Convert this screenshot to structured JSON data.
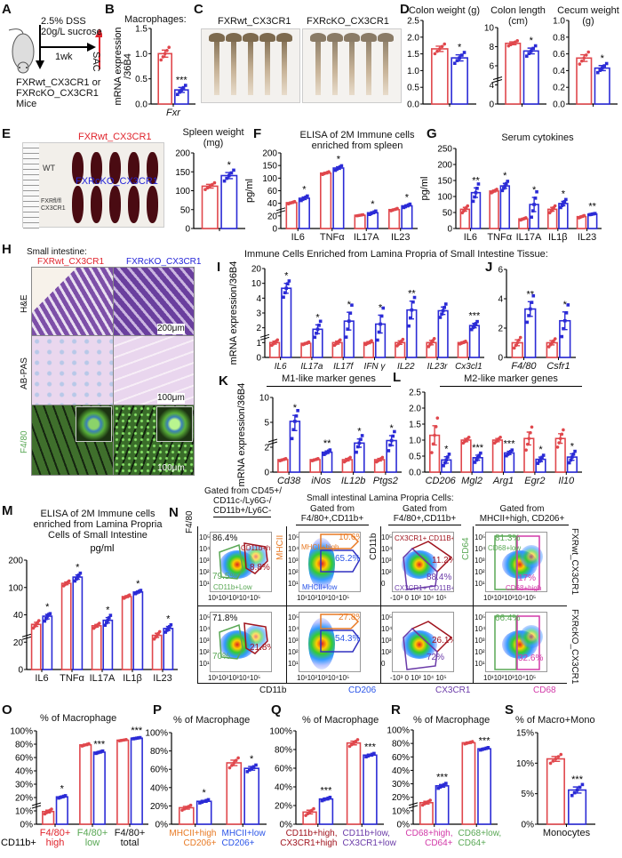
{
  "colors": {
    "wt": "#e0474c",
    "ko": "#2b2bd6",
    "orange": "#e87a24",
    "green": "#5aa855",
    "purple": "#6a3aa8",
    "magenta": "#d23aa8",
    "darkred": "#a0141e"
  },
  "panel_labels": [
    "A",
    "B",
    "C",
    "D",
    "E",
    "F",
    "G",
    "H",
    "I",
    "J",
    "K",
    "L",
    "M",
    "N",
    "O",
    "P",
    "Q",
    "R",
    "S"
  ],
  "A": {
    "treatment_line1": "2.5% DSS",
    "treatment_line2": "20g/L sucrose",
    "duration": "1wk",
    "endpoint": "SAC",
    "mice_line1": "FXRwt_CX3CR1 or",
    "mice_line2": "FXRcKO_CX3CR1",
    "mice_line3": "Mice",
    "icon": "mouse-icon"
  },
  "B": {
    "title": "Macrophages:"
  },
  "C": {
    "wt_label": "FXRwt_CX3CR1",
    "ko_label": "FXRcKO_CX3CR1"
  },
  "E": {
    "wt_label": "FXRwt_CX3CR1",
    "ko_label": "FXRcKO_CX3CR1",
    "handwriting_wt": "WT",
    "handwriting_ko": "FXRfl/fl CX3CR1"
  },
  "H": {
    "title": "Small intestine:",
    "wt_label": "FXRwt_CX3CR1",
    "ko_label": "FXRcKO_CX3CR1",
    "rows": [
      "H&E",
      "AB-PAS",
      "F4/80"
    ],
    "scale_bars": [
      "200μm",
      "100μm",
      "100μm"
    ]
  },
  "IJ_title": "Immune Cells Enriched from Lamina Propria of Small Intestine Tissue:",
  "K_title": "M1-like marker genes",
  "L_title": "M2-like marker genes",
  "M_title_line1": "ELISA of 2M Immune cells",
  "M_title_line2": "enriched from Lamina Propria",
  "M_title_line3": "Cells of Small Intestine",
  "N": {
    "header_left": [
      "Gated from CD45+/",
      "CD11c-/Ly6G-/",
      "CD11b+/Ly6C-"
    ],
    "header_main": "Small intestinal Lamina Propria Cells:",
    "header_col2": [
      "Gated from",
      "F4/80+,CD11b+"
    ],
    "header_col3": [
      "Gated from",
      "F4/80+,CD11b+"
    ],
    "header_col4": [
      "Gated from",
      "MHCII+high, CD206+"
    ],
    "y_axes": [
      "F4/80",
      "MHCII",
      "CD11b",
      "CD64"
    ],
    "x_axes": [
      "CD11b",
      "CD206",
      "CX3CR1",
      "CD68"
    ],
    "row_labels": [
      "FXRwt_CX3CR1",
      "FXRcKO_CX3CR1"
    ],
    "ticks_log": "10¹10²10³10⁴10⁵",
    "ticks_cx3cr1": "-10³ 0 10³ 10⁴ 10⁵",
    "yticks": [
      "10⁵",
      "10⁴",
      "10³",
      "10²",
      "10¹"
    ],
    "yticks_cx3cr1": [
      "10⁵",
      "10⁴",
      "10³",
      "10²",
      "0"
    ],
    "gates": {
      "cd11b_high": "CD11b+high",
      "cd11b_low": "CD11b+Low",
      "mhcii_high": "MHCII+high",
      "mhcii_low": "MHCII+low",
      "cx3cr1_high": "CX3CR1+ CD11B+ high",
      "cx3cr1_low": "CX3CR1+ CD11B+ low",
      "cd68_low": "CD68+low",
      "cd68_high": "CD68+high"
    },
    "wt": {
      "total": "86.4%",
      "cd11b_low": "79.5%",
      "cd11b_high": "8.8%",
      "mhcii_high": "10.6%",
      "mhcii_low": "65.2%",
      "cx3cr1_high": "11.2%",
      "cx3cr1_low": "88.4%",
      "cd68_low": "81.3%",
      "cd68_high": "17%"
    },
    "ko": {
      "total": "71.8%",
      "cd11b_low": "70%",
      "cd11b_high": "21.8%",
      "mhcii_high": "27.8%",
      "mhcii_low": "54.3%",
      "cx3cr1_high": "26.1%",
      "cx3cr1_low": "72%",
      "cd68_low": "66.4%",
      "cd68_high": "32.6%"
    }
  },
  "chart_data": [
    {
      "id": "B",
      "type": "bar",
      "ylabel": "mRNA expression /36B4",
      "yticks": [
        0,
        0.5,
        1.0,
        1.5
      ],
      "ytick_labels": [
        "0.0",
        "0.5",
        "1.0",
        "1.5"
      ],
      "categories": [
        "Fxr"
      ],
      "italic": true,
      "wt": [
        1.0
      ],
      "wt_err": [
        0.07
      ],
      "ko": [
        0.28
      ],
      "ko_err": [
        0.05
      ],
      "stars": [
        "***"
      ]
    },
    {
      "id": "D1",
      "type": "bar",
      "title": "Colon weight (g)",
      "yticks": [
        0,
        0.5,
        1.0,
        1.5,
        2.0,
        2.5
      ],
      "ytick_labels": [
        "0.0",
        "0.5",
        "1.0",
        "1.5",
        "2.0",
        "2.5"
      ],
      "categories": [
        ""
      ],
      "wt": [
        1.65
      ],
      "wt_err": [
        0.08
      ],
      "ko": [
        1.38
      ],
      "ko_err": [
        0.09
      ],
      "stars": [
        "*"
      ]
    },
    {
      "id": "D2",
      "type": "bar",
      "title": "Colon length (cm)",
      "yticks": [
        0,
        4,
        6,
        8,
        10
      ],
      "ytick_labels": [
        "0",
        "4",
        "6",
        "8",
        "10"
      ],
      "axis_break": true,
      "categories": [
        ""
      ],
      "wt": [
        8.35
      ],
      "wt_err": [
        0.15
      ],
      "ko": [
        7.55
      ],
      "ko_err": [
        0.3
      ],
      "stars": [
        "*"
      ]
    },
    {
      "id": "D3",
      "type": "bar",
      "title": "Cecum weight (g)",
      "yticks": [
        0,
        0.2,
        0.4,
        0.6,
        0.8,
        1.0
      ],
      "ytick_labels": [
        "0.0",
        "0.2",
        "0.4",
        "0.6",
        "0.8",
        "1.0"
      ],
      "categories": [
        ""
      ],
      "wt": [
        0.55
      ],
      "wt_err": [
        0.04
      ],
      "ko": [
        0.43
      ],
      "ko_err": [
        0.03
      ],
      "stars": [
        "*"
      ]
    },
    {
      "id": "E",
      "type": "bar",
      "title": "Spleen weight (mg)",
      "yticks": [
        0,
        50,
        100,
        150,
        200
      ],
      "ytick_labels": [
        "0",
        "50",
        "100",
        "150",
        "200"
      ],
      "categories": [
        ""
      ],
      "wt": [
        112
      ],
      "wt_err": [
        5
      ],
      "ko": [
        140
      ],
      "ko_err": [
        8
      ],
      "stars": [
        "*"
      ]
    },
    {
      "id": "F",
      "type": "bar",
      "title": "ELISA of 2M Immune cells enriched from spleen",
      "ylabel": "pg/ml",
      "yticks": [
        0,
        20,
        40,
        60,
        100,
        150,
        200
      ],
      "ytick_labels": [
        "0",
        "20",
        "40",
        "60",
        "100",
        "150",
        "200"
      ],
      "axis_break": true,
      "categories": [
        "IL6",
        "TNFα",
        "IL17A",
        "IL23"
      ],
      "wt": [
        41,
        120,
        21,
        30
      ],
      "wt_err": [
        1,
        3,
        0.5,
        1
      ],
      "ko": [
        48,
        140,
        25,
        36
      ],
      "ko_err": [
        2,
        5,
        1.5,
        1.5
      ],
      "stars": [
        "*",
        "*",
        "*",
        "*"
      ]
    },
    {
      "id": "G",
      "type": "bar",
      "title": "Serum cytokines",
      "ylabel": "pg/ml",
      "yticks": [
        0,
        50,
        100,
        150,
        200,
        250
      ],
      "ytick_labels": [
        "0",
        "50",
        "100",
        "150",
        "200",
        "250"
      ],
      "categories": [
        "IL6",
        "TNFα",
        "IL17A",
        "IL1β",
        "IL23"
      ],
      "wt": [
        60,
        117,
        30,
        60,
        37
      ],
      "wt_err": [
        6,
        3,
        2,
        6,
        2
      ],
      "ko": [
        112,
        133,
        75,
        78,
        45
      ],
      "ko_err": [
        15,
        8,
        22,
        7,
        1
      ],
      "stars": [
        "**",
        "*",
        "*",
        "*",
        "**"
      ]
    },
    {
      "id": "I",
      "type": "bar",
      "ylabel": "mRNA expression/36B4",
      "yticks": [
        0,
        1,
        2,
        3,
        4,
        10,
        20
      ],
      "ytick_labels": [
        "0",
        "1",
        "2",
        "3",
        "4",
        "10",
        "20"
      ],
      "axis_break": true,
      "italic": true,
      "categories": [
        "IL6",
        "IL17a",
        "IL17f",
        "IFN γ",
        "IL22",
        "IL23r",
        "Cx3cl1"
      ],
      "wt": [
        1.0,
        0.95,
        1.0,
        1.0,
        1.0,
        1.0,
        1.0
      ],
      "wt_err": [
        0.1,
        0.05,
        0.1,
        0.07,
        0.12,
        0.15,
        0.05
      ],
      "ko": [
        8,
        1.9,
        2.45,
        2.25,
        3.2,
        3.15,
        2.15
      ],
      "ko_err": [
        2,
        0.3,
        0.6,
        0.6,
        0.6,
        0.25,
        0.15
      ],
      "stars": [
        "*",
        "*",
        "*",
        "*",
        "**",
        "",
        "***"
      ]
    },
    {
      "id": "J",
      "type": "bar",
      "yticks": [
        0,
        2,
        4,
        6
      ],
      "ytick_labels": [
        "0",
        "2",
        "4",
        "6"
      ],
      "italic": true,
      "categories": [
        "F4/80",
        "Csfr1"
      ],
      "wt": [
        1.0,
        1.0
      ],
      "wt_err": [
        0.2,
        0.15
      ],
      "ko": [
        3.3,
        2.5
      ],
      "ko_err": [
        0.5,
        0.6
      ],
      "stars": [
        "**",
        "*"
      ]
    },
    {
      "id": "K",
      "type": "bar",
      "ylabel": "mRNA expression/36B4",
      "yticks": [
        0,
        2,
        5,
        10
      ],
      "ytick_labels": [
        "0",
        "2",
        "5",
        "10"
      ],
      "axis_break": true,
      "italic": true,
      "categories": [
        "Cd38",
        "iNos",
        "IL12b",
        "Ptgs2"
      ],
      "wt": [
        1.0,
        1.0,
        1.0,
        1.0
      ],
      "wt_err": [
        0.05,
        0.05,
        0.1,
        0.1
      ],
      "ko": [
        5.2,
        1.6,
        2.5,
        2.8
      ],
      "ko_err": [
        1.2,
        0.1,
        0.5,
        0.6
      ],
      "stars": [
        "*",
        "**",
        "*",
        "*"
      ]
    },
    {
      "id": "L",
      "type": "bar",
      "yticks": [
        0,
        0.5,
        1.0,
        1.5,
        2.0,
        2.5
      ],
      "ytick_labels": [
        "0.0",
        "0.5",
        "1.0",
        "1.5",
        "2.0",
        "2.5"
      ],
      "italic": true,
      "categories": [
        "CD206",
        "Mgl2",
        "Arg1",
        "Egr2",
        "Il10"
      ],
      "wt": [
        1.15,
        1.0,
        1.0,
        1.05,
        1.05
      ],
      "wt_err": [
        0.3,
        0.05,
        0.05,
        0.2,
        0.15
      ],
      "ko": [
        0.38,
        0.45,
        0.6,
        0.4,
        0.47
      ],
      "ko_err": [
        0.1,
        0.08,
        0.05,
        0.07,
        0.1
      ],
      "stars": [
        "*",
        "***",
        "***",
        "*",
        "*"
      ]
    },
    {
      "id": "M",
      "type": "bar",
      "ylabel": "pg/ml",
      "yticks": [
        0,
        20,
        40,
        100,
        200
      ],
      "ytick_labels": [
        "0",
        "20",
        "40",
        "100",
        "200"
      ],
      "axis_break": true,
      "categories": [
        "IL6",
        "TNFα",
        "IL17A",
        "IL1β",
        "IL23"
      ],
      "wt": [
        33,
        115,
        32,
        80,
        25
      ],
      "wt_err": [
        1.5,
        5,
        1,
        2,
        1.5
      ],
      "ko": [
        39,
        138,
        36,
        90,
        30
      ],
      "ko_err": [
        2,
        8,
        2,
        2,
        1.5
      ],
      "stars": [
        "*",
        "*",
        "*",
        "*",
        "*"
      ]
    },
    {
      "id": "O",
      "type": "bar",
      "title": "% of Macrophage",
      "yticks": [
        0,
        10,
        20,
        30,
        40,
        60,
        80,
        100
      ],
      "ytick_labels": [
        "0%",
        "10%",
        "20%",
        "30%",
        "40%",
        "60%",
        "80%",
        "100%"
      ],
      "axis_break": true,
      "prefix_label": "CD11b+",
      "categories": [
        [
          "F4/80+",
          "high"
        ],
        [
          "F4/80+",
          "low"
        ],
        [
          "F4/80+",
          "total"
        ]
      ],
      "category_colors": [
        "#e0242c",
        "#5aa855",
        "#111111"
      ],
      "wt": [
        9.5,
        79,
        86
      ],
      "wt_err": [
        1,
        1,
        0.5
      ],
      "ko": [
        20.5,
        68,
        89
      ],
      "ko_err": [
        0.5,
        1,
        0.5
      ],
      "stars": [
        "*",
        "***",
        "***"
      ]
    },
    {
      "id": "P",
      "type": "bar",
      "title": "% of Macrophage",
      "yticks": [
        0,
        20,
        40,
        60,
        80,
        100
      ],
      "ytick_labels": [
        "0%",
        "20%",
        "40%",
        "60%",
        "80%",
        "100%"
      ],
      "categories": [
        [
          "MHCII+high",
          "CD206+"
        ],
        [
          "MHCII+low",
          "CD206+"
        ]
      ],
      "category_colors": [
        "#e87a24",
        "#2b55e8"
      ],
      "wt": [
        18,
        67
      ],
      "wt_err": [
        1.5,
        3
      ],
      "ko": [
        25,
        61
      ],
      "ko_err": [
        1,
        2
      ],
      "stars": [
        "*",
        "*"
      ]
    },
    {
      "id": "Q",
      "type": "bar",
      "title": "% of Macrophage",
      "yticks": [
        0,
        20,
        40,
        60,
        80,
        100
      ],
      "ytick_labels": [
        "0%",
        "20%",
        "40%",
        "60%",
        "80%",
        "100%"
      ],
      "categories": [
        [
          "CD11b+high,",
          "CX3CR1+high"
        ],
        [
          "CD11b+low,",
          "CX3CR1+low"
        ]
      ],
      "category_colors": [
        "#a0141e",
        "#6a3aa8"
      ],
      "wt": [
        13,
        87
      ],
      "wt_err": [
        2,
        2
      ],
      "ko": [
        27,
        74
      ],
      "ko_err": [
        1,
        1
      ],
      "stars": [
        "***",
        "***"
      ]
    },
    {
      "id": "R",
      "type": "bar",
      "title": "% of Macrophage",
      "yticks": [
        0,
        10,
        20,
        30,
        40,
        60,
        80,
        100
      ],
      "ytick_labels": [
        "0%",
        "10%",
        "20%",
        "30%",
        "40%",
        "60%",
        "80%",
        "100%"
      ],
      "axis_break": true,
      "categories": [
        [
          "CD68+high,",
          "CD64+"
        ],
        [
          "CD68+low,",
          "CD64+"
        ]
      ],
      "category_colors": [
        "#d23aa8",
        "#5aa855"
      ],
      "wt": [
        16,
        81
      ],
      "wt_err": [
        1,
        1
      ],
      "ko": [
        28.5,
        72
      ],
      "ko_err": [
        1,
        1
      ],
      "stars": [
        "***",
        "***"
      ]
    },
    {
      "id": "S",
      "type": "bar",
      "title": "% of Macro+Mono",
      "yticks": [
        0,
        5,
        10,
        15
      ],
      "ytick_labels": [
        "0%",
        "5%",
        "10%",
        "15%"
      ],
      "categories": [
        "Monocytes"
      ],
      "wt": [
        10.7
      ],
      "wt_err": [
        0.4
      ],
      "ko": [
        5.6
      ],
      "ko_err": [
        0.5
      ],
      "stars": [
        "***"
      ]
    }
  ]
}
